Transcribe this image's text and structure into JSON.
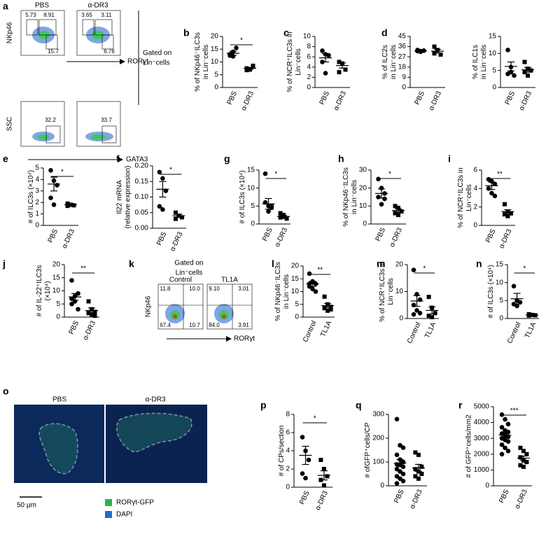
{
  "chart_data": [
    {
      "type": "dotplot",
      "panel": "b",
      "ylabel": [
        "% of NKp46⁻ILC3s",
        "in Lin⁻cells"
      ],
      "categories": [
        "PBS",
        "α-DR3"
      ],
      "values": [
        [
          12.5,
          14,
          15.5,
          13,
          12.2
        ],
        [
          7.5,
          7,
          8.5,
          6.8
        ]
      ],
      "mean": [
        13.4,
        7.5
      ],
      "sem": [
        0.8,
        0.4
      ],
      "ylim": [
        0,
        20
      ],
      "yticks": [
        0,
        5,
        10,
        15,
        20
      ],
      "significance": "*",
      "markers": [
        "circle",
        "square"
      ],
      "color": "#000000"
    },
    {
      "type": "dotplot",
      "panel": "c",
      "ylabel": [
        "% of NCR⁺ILC3s in",
        "Lin⁻cells"
      ],
      "categories": [
        "PBS",
        "α-DR3"
      ],
      "values": [
        [
          7.2,
          6.5,
          6.3,
          5,
          2.8
        ],
        [
          5,
          4.7,
          3.5,
          3
        ]
      ],
      "mean": [
        5.8,
        4.3
      ],
      "sem": [
        0.8,
        0.5
      ],
      "ylim": [
        0,
        10
      ],
      "yticks": [
        0,
        2,
        4,
        6,
        8,
        10
      ],
      "markers": [
        "circle",
        "square"
      ],
      "color": "#000000"
    },
    {
      "type": "dotplot",
      "panel": "d",
      "ylabel": [
        "% of ILC2s",
        "in Lin⁻cells"
      ],
      "categories": [
        "PBS",
        "α-DR3"
      ],
      "values": [
        [
          33,
          32,
          32.5,
          32,
          31.5
        ],
        [
          36,
          33,
          29,
          30
        ]
      ],
      "mean": [
        32.2,
        32
      ],
      "sem": [
        0.3,
        1.6
      ],
      "ylim": [
        0,
        45
      ],
      "yticks": [
        0,
        9,
        18,
        27,
        36,
        45
      ],
      "markers": [
        "circle",
        "square"
      ],
      "color": "#000000"
    },
    {
      "type": "dotplot",
      "ylabel": [
        "% of ILC1s",
        "in Lin⁻cells"
      ],
      "categories": [
        "PBS",
        "α-DR3"
      ],
      "values": [
        [
          11,
          6,
          3.5,
          4,
          4.5
        ],
        [
          7.5,
          5.5,
          5,
          4.5,
          3.5
        ]
      ],
      "mean": [
        6.2,
        5.2
      ],
      "sem": [
        1.3,
        0.7
      ],
      "ylim": [
        0,
        15
      ],
      "yticks": [
        0,
        5,
        10,
        15
      ],
      "markers": [
        "circle",
        "square"
      ],
      "color": "#000000"
    },
    {
      "type": "dotplot",
      "panel": "e",
      "ylabel": [
        "# of ILC3s (×10⁴)"
      ],
      "categories": [
        "PBS",
        "α-DR3"
      ],
      "values": [
        [
          4.8,
          3.9,
          3.5,
          2.4,
          1.8
        ],
        [
          1.9,
          1.8,
          1.75,
          1.7
        ]
      ],
      "mean": [
        3.6,
        1.8
      ],
      "sem": [
        0.6,
        0.1
      ],
      "ylim": [
        0,
        5
      ],
      "yticks": [
        0,
        1,
        2,
        3,
        4,
        5
      ],
      "significance": "*",
      "markers": [
        "circle",
        "square"
      ],
      "color": "#000000"
    },
    {
      "type": "dotplot",
      "panel": "f",
      "ylabel": [
        "Il22 mRNA",
        "(relative expression)"
      ],
      "categories": [
        "PBS",
        "α-DR3"
      ],
      "values": [
        [
          0.18,
          0.16,
          0.12,
          0.07,
          0.06
        ],
        [
          0.05,
          0.04,
          0.035,
          0.03
        ]
      ],
      "mean": [
        0.125,
        0.04
      ],
      "sem": [
        0.025,
        0.005
      ],
      "ylim": [
        0,
        0.2
      ],
      "yticks": [
        {
          "value": 0,
          "label": "0.00"
        },
        {
          "value": 0.05,
          "label": "0.05"
        },
        {
          "value": 0.1,
          "label": "0.10"
        },
        {
          "value": 0.15,
          "label": "0.15"
        },
        {
          "value": 0.2,
          "label": "0.20"
        }
      ],
      "significance": "*",
      "markers": [
        "circle",
        "square"
      ],
      "color": "#000000"
    },
    {
      "type": "dotplot",
      "panel": "g",
      "ylabel": [
        "# of ILC3s (×10⁴)"
      ],
      "categories": [
        "PBS",
        "α-DR3"
      ],
      "values": [
        [
          14,
          5,
          4.5,
          6,
          3.5,
          5
        ],
        [
          3,
          2.5,
          1.5,
          1.8,
          2
        ]
      ],
      "mean": [
        5.6,
        2.1
      ],
      "sem": [
        1.5,
        0.3
      ],
      "ylim": [
        0,
        15
      ],
      "yticks": [
        0,
        5,
        10,
        15
      ],
      "significance": "*",
      "markers": [
        "circle",
        "square"
      ],
      "color": "#000000"
    },
    {
      "type": "dotplot",
      "panel": "h",
      "ylabel": [
        "% of NKp46⁻ILC3s",
        "in Lin⁻cells"
      ],
      "categories": [
        "PBS",
        "α-DR3"
      ],
      "values": [
        [
          25,
          20,
          17,
          15,
          11,
          14
        ],
        [
          10,
          9,
          7,
          6,
          5
        ]
      ],
      "mean": [
        17,
        7.5
      ],
      "sem": [
        2.5,
        1
      ],
      "ylim": [
        0,
        30
      ],
      "yticks": [
        0,
        10,
        20,
        30
      ],
      "significance": "*",
      "markers": [
        "circle",
        "square"
      ],
      "color": "#000000"
    },
    {
      "type": "dotplot",
      "panel": "i",
      "ylabel": [
        "% of NCR⁺ILC3s in",
        "Lin⁻cells"
      ],
      "categories": [
        "PBS",
        "α-DR3"
      ],
      "values": [
        [
          5,
          4.8,
          4.5,
          4,
          3.5,
          3.2
        ],
        [
          2.3,
          1.5,
          1.3,
          1.2,
          1
        ]
      ],
      "mean": [
        4.3,
        1.5
      ],
      "sem": [
        0.4,
        0.2
      ],
      "ylim": [
        0,
        6
      ],
      "yticks": [
        0,
        2,
        4,
        6
      ],
      "significance": "**",
      "markers": [
        "circle",
        "square"
      ],
      "color": "#000000"
    },
    {
      "type": "dotplot",
      "panel": "j",
      "ylabel": [
        "# of IL-22⁺ILC3s",
        "(×10⁴)"
      ],
      "categories": [
        "PBS",
        "α-DR3"
      ],
      "values": [
        [
          14,
          8,
          9,
          7,
          6,
          3,
          5
        ],
        [
          6,
          3,
          2,
          1.5,
          1,
          0.5
        ]
      ],
      "mean": [
        7.7,
        2.5
      ],
      "sem": [
        1.3,
        1
      ],
      "ylim": [
        0,
        20
      ],
      "yticks": [
        0,
        5,
        10,
        15,
        20
      ],
      "significance": "**",
      "markers": [
        "circle",
        "square"
      ],
      "color": "#000000"
    },
    {
      "type": "dotplot",
      "panel": "l",
      "ylabel": [
        "% of NKp46⁻ILC3s",
        "in Lin⁻cells"
      ],
      "categories": [
        "Control",
        "TL1A"
      ],
      "values": [
        [
          17,
          14,
          13,
          12,
          11,
          10,
          13
        ],
        [
          8,
          5,
          4,
          3.5,
          2.5,
          3
        ]
      ],
      "mean": [
        13,
        4.5
      ],
      "sem": [
        1,
        0.8
      ],
      "ylim": [
        0,
        20
      ],
      "yticks": [
        0,
        5,
        10,
        15,
        20
      ],
      "significance": "**",
      "markers": [
        "circle",
        "square"
      ],
      "color": "#000000"
    },
    {
      "type": "dotplot",
      "panel": "m",
      "ylabel": [
        "% of NCR⁺ILC3s in",
        "Lin⁻cells"
      ],
      "categories": [
        "Control",
        "TL1A"
      ],
      "values": [
        [
          18,
          9,
          7,
          5,
          3,
          2,
          1.5
        ],
        [
          8,
          4,
          2,
          1,
          0.5
        ]
      ],
      "mean": [
        6.5,
        3
      ],
      "sem": [
        2,
        1.3
      ],
      "ylim": [
        0,
        20
      ],
      "yticks": [
        0,
        10,
        20
      ],
      "significance": "*",
      "markers": [
        "circle",
        "square"
      ],
      "color": "#000000"
    },
    {
      "type": "dotplot",
      "panel": "n",
      "ylabel": [
        "# of ILC3s (×10⁴)"
      ],
      "categories": [
        "Control",
        "TL1A"
      ],
      "values": [
        [
          9,
          5,
          4.5,
          4,
          3.5
        ],
        [
          1.2,
          1,
          0.9,
          0.8
        ]
      ],
      "mean": [
        5.5,
        1
      ],
      "sem": [
        1.5,
        0.1
      ],
      "ylim": [
        0,
        15
      ],
      "yticks": [
        0,
        5,
        10,
        15
      ],
      "significance": "*",
      "markers": [
        "circle",
        "square"
      ],
      "color": "#000000"
    },
    {
      "type": "dotplot",
      "panel": "p",
      "ylabel": [
        "# of CPs/section"
      ],
      "categories": [
        "PBS",
        "α-DR3"
      ],
      "values": [
        [
          5.5,
          4,
          3,
          1.5,
          1
        ],
        [
          3,
          2,
          1.2,
          0.8,
          0.2
        ]
      ],
      "mean": [
        3.5,
        1.3
      ],
      "sem": [
        1,
        0.5
      ],
      "ylim": [
        0,
        8
      ],
      "yticks": [
        0,
        2,
        4,
        6,
        8
      ],
      "significance": "*",
      "markers": [
        "circle",
        "square"
      ],
      "color": "#000000"
    },
    {
      "type": "dotplot",
      "panel": "q",
      "ylabel": [
        "# ofGFP⁺cells/CP"
      ],
      "categories": [
        "PBS",
        "α-DR3"
      ],
      "values": [
        [
          280,
          170,
          160,
          130,
          110,
          100,
          90,
          90,
          80,
          70,
          60,
          50,
          40,
          30,
          20,
          10
        ],
        [
          140,
          130,
          80,
          70,
          60,
          50,
          40,
          30
        ]
      ],
      "mean": [
        95,
        75
      ],
      "sem": [
        15,
        15
      ],
      "ylim": [
        0,
        300
      ],
      "yticks": [
        0,
        100,
        200,
        300
      ],
      "markers": [
        "circle",
        "square"
      ],
      "color": "#000000"
    },
    {
      "type": "dotplot",
      "panel": "r",
      "ylabel": [
        "# of GFP⁺cells/mm2"
      ],
      "categories": [
        "PBS",
        "α-DR3"
      ],
      "values": [
        [
          4500,
          4200,
          3900,
          3700,
          3500,
          3400,
          3300,
          3200,
          3100,
          3000,
          2900,
          2800,
          2600,
          2400,
          2200,
          2000
        ],
        [
          2400,
          2200,
          2000,
          1800,
          1600,
          1500,
          1300,
          1200
        ]
      ],
      "mean": [
        3200,
        1750
      ],
      "sem": [
        150,
        130
      ],
      "ylim": [
        0,
        5000
      ],
      "yticks": [
        0,
        1000,
        2000,
        3000,
        4000,
        5000
      ],
      "significance": "***",
      "markers": [
        "circle",
        "square"
      ],
      "color": "#000000"
    }
  ],
  "flow_a": {
    "letter": "a",
    "columns": [
      "PBS",
      "α-DR3"
    ],
    "top_y_label": "NKp46",
    "top_x_label": "RORγt",
    "top_gates": [
      [
        "5.73",
        "8.91",
        "15.7"
      ],
      [
        "3.65",
        "3.11",
        "6.76"
      ]
    ],
    "bottom_y_label": "SSC",
    "bottom_x_label": "GATA3",
    "bottom_gates": [
      "32.2",
      "33.7"
    ],
    "gate_label": [
      "Gated on",
      "Lin⁻cells"
    ]
  },
  "flow_k": {
    "letter": "k",
    "gate_label": [
      "Gated on",
      "Lin⁻cells"
    ],
    "columns": [
      "Control",
      "TL1A"
    ],
    "y_label": "NKp46",
    "x_label": "RORγt",
    "quadrants": [
      [
        "11.8",
        "10.0",
        "67.4",
        "10.7"
      ],
      [
        "9.10",
        "3.01",
        "84.0",
        "3.91"
      ]
    ]
  },
  "image_o": {
    "letter": "o",
    "columns": [
      "PBS",
      "α-DR3"
    ],
    "scale_bar": "50 μm",
    "legend": [
      "RORγt-GFP",
      "DAPI"
    ]
  }
}
